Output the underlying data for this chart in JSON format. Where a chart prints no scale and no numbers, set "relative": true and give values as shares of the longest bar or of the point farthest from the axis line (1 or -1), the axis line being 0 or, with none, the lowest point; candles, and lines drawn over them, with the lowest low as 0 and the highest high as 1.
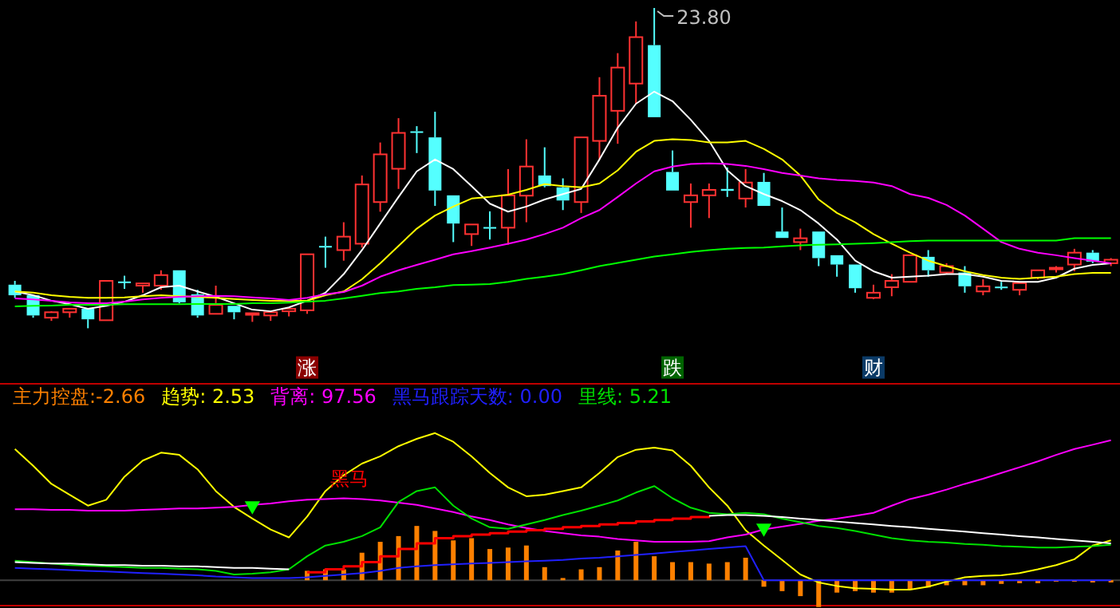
{
  "chart_data": [
    {
      "type": "candlestick",
      "relative": true,
      "categories": [
        null,
        null,
        null,
        null,
        null,
        null,
        null,
        null,
        null,
        null,
        null,
        null,
        null,
        null,
        null,
        null,
        "涨",
        null,
        null,
        null,
        null,
        null,
        null,
        null,
        null,
        null,
        null,
        null,
        null,
        null,
        null,
        null,
        null,
        null,
        null,
        null,
        "跌",
        null,
        null,
        null,
        null,
        null,
        null,
        null,
        null,
        null,
        null,
        "财",
        null,
        null,
        null,
        null,
        null,
        null,
        null,
        null,
        null,
        null,
        null,
        null,
        null
      ],
      "ohlc": [
        [
          0.136,
          0.148,
          0.095,
          0.103
        ],
        [
          0.103,
          0.103,
          0.033,
          0.04
        ],
        [
          0.033,
          0.053,
          0.023,
          0.05
        ],
        [
          0.05,
          0.061,
          0.033,
          0.061
        ],
        [
          0.061,
          0.061,
          0,
          0.028
        ],
        [
          0.025,
          0.148,
          0.025,
          0.148
        ],
        [
          0.146,
          0.164,
          0.123,
          0.143
        ],
        [
          0.133,
          0.14,
          0.111,
          0.14
        ],
        [
          0.133,
          0.181,
          0.12,
          0.166
        ],
        [
          0.181,
          0.181,
          0.078,
          0.081
        ],
        [
          0.106,
          0.12,
          0.033,
          0.04
        ],
        [
          0.045,
          0.133,
          0.045,
          0.073
        ],
        [
          0.07,
          0.07,
          0.028,
          0.05
        ],
        [
          0.043,
          0.047,
          0.02,
          0.047
        ],
        [
          0.04,
          0.05,
          0.023,
          0.05
        ],
        [
          0.053,
          0.065,
          0.037,
          0.061
        ],
        [
          0.056,
          0.231,
          0.045,
          0.231
        ],
        [
          0.257,
          0.286,
          0.189,
          0.254
        ],
        [
          0.244,
          0.331,
          0.211,
          0.286
        ],
        [
          0.264,
          0.477,
          0.252,
          0.449
        ],
        [
          0.394,
          0.58,
          0.364,
          0.543
        ],
        [
          0.498,
          0.656,
          0.435,
          0.61
        ],
        [
          0.615,
          0.631,
          0.547,
          0.611
        ],
        [
          0.596,
          0.676,
          0.382,
          0.43
        ],
        [
          0.415,
          0.415,
          0.269,
          0.327
        ],
        [
          0.294,
          0.324,
          0.257,
          0.324
        ],
        [
          0.316,
          0.365,
          0.277,
          0.312
        ],
        [
          0.314,
          0.497,
          0.261,
          0.415
        ],
        [
          0.414,
          0.59,
          0.331,
          0.505
        ],
        [
          0.477,
          0.565,
          0.44,
          0.444
        ],
        [
          0.44,
          0.468,
          0.369,
          0.399
        ],
        [
          0.394,
          0.596,
          0.36,
          0.596
        ],
        [
          0.585,
          0.784,
          0.527,
          0.726
        ],
        [
          0.679,
          0.859,
          0.576,
          0.814
        ],
        [
          0.764,
          0.958,
          0.701,
          0.909
        ],
        [
          0.884,
          1,
          0.659,
          0.659
        ],
        [
          0.488,
          0.555,
          0.43,
          0.43
        ],
        [
          0.394,
          0.452,
          0.314,
          0.415
        ],
        [
          0.415,
          0.452,
          0.344,
          0.432
        ],
        [
          0.435,
          0.502,
          0.41,
          0.429
        ],
        [
          0.405,
          0.497,
          0.377,
          0.455
        ],
        [
          0.457,
          0.485,
          0.382,
          0.382
        ],
        [
          0.302,
          0.377,
          0.282,
          0.282
        ],
        [
          0.269,
          0.311,
          0.244,
          0.281
        ],
        [
          0.302,
          0.302,
          0.194,
          0.219
        ],
        [
          0.228,
          0.228,
          0.161,
          0.199
        ],
        [
          0.199,
          0.199,
          0.111,
          0.125
        ],
        [
          0.095,
          0.136,
          0.091,
          0.111
        ],
        [
          0.128,
          0.169,
          0.1,
          0.148
        ],
        [
          0.145,
          0.228,
          0.145,
          0.228
        ],
        [
          0.223,
          0.244,
          0.161,
          0.181
        ],
        [
          0.174,
          0.203,
          0.169,
          0.194
        ],
        [
          0.174,
          0.194,
          0.111,
          0.131
        ],
        [
          0.115,
          0.153,
          0.103,
          0.131
        ],
        [
          0.13,
          0.145,
          0.12,
          0.126
        ],
        [
          0.12,
          0.141,
          0.103,
          0.141
        ],
        [
          0.158,
          0.181,
          0.153,
          0.181
        ],
        [
          0.184,
          0.194,
          0.174,
          0.189
        ],
        [
          0.199,
          0.248,
          0.178,
          0.236
        ],
        [
          0.236,
          0.244,
          0.203,
          0.208
        ],
        [
          0.203,
          0.219,
          0.194,
          0.214
        ]
      ],
      "series": [
        {
          "type": "line",
          "color": "#ffffff",
          "values": [
            0.115,
            0.103,
            0.086,
            0.075,
            0.061,
            0.07,
            0.083,
            0.103,
            0.128,
            0.133,
            0.115,
            0.098,
            0.078,
            0.058,
            0.053,
            0.065,
            0.086,
            0.111,
            0.169,
            0.244,
            0.327,
            0.41,
            0.49,
            0.527,
            0.497,
            0.444,
            0.389,
            0.364,
            0.38,
            0.402,
            0.419,
            0.435,
            0.527,
            0.626,
            0.701,
            0.739,
            0.709,
            0.651,
            0.585,
            0.493,
            0.444,
            0.419,
            0.397,
            0.369,
            0.327,
            0.277,
            0.211,
            0.178,
            0.158,
            0.161,
            0.164,
            0.169,
            0.169,
            0.161,
            0.148,
            0.145,
            0.145,
            0.158,
            0.186,
            0.198,
            0.203
          ]
        },
        {
          "type": "line",
          "color": "#ffff00",
          "values": [
            0.115,
            0.111,
            0.103,
            0.098,
            0.095,
            0.095,
            0.096,
            0.1,
            0.103,
            0.1,
            0.098,
            0.095,
            0.091,
            0.088,
            0.086,
            0.086,
            0.086,
            0.103,
            0.115,
            0.153,
            0.203,
            0.257,
            0.311,
            0.352,
            0.38,
            0.405,
            0.41,
            0.417,
            0.432,
            0.45,
            0.444,
            0.44,
            0.452,
            0.493,
            0.551,
            0.585,
            0.59,
            0.588,
            0.58,
            0.58,
            0.585,
            0.56,
            0.527,
            0.477,
            0.402,
            0.36,
            0.331,
            0.294,
            0.264,
            0.236,
            0.211,
            0.194,
            0.178,
            0.166,
            0.158,
            0.154,
            0.158,
            0.161,
            0.169,
            0.173,
            0.173
          ]
        },
        {
          "type": "line",
          "color": "#ff00ff",
          "values": [
            0.093,
            0.09,
            0.086,
            0.081,
            0.078,
            0.078,
            0.083,
            0.09,
            0.095,
            0.098,
            0.1,
            0.101,
            0.1,
            0.096,
            0.093,
            0.088,
            0.095,
            0.106,
            0.113,
            0.133,
            0.161,
            0.181,
            0.198,
            0.214,
            0.231,
            0.241,
            0.252,
            0.264,
            0.277,
            0.294,
            0.314,
            0.344,
            0.369,
            0.41,
            0.452,
            0.49,
            0.505,
            0.513,
            0.515,
            0.513,
            0.507,
            0.497,
            0.485,
            0.477,
            0.468,
            0.463,
            0.46,
            0.455,
            0.444,
            0.419,
            0.407,
            0.385,
            0.352,
            0.311,
            0.269,
            0.248,
            0.236,
            0.228,
            0.219,
            0.211,
            0.203
          ]
        },
        {
          "type": "line",
          "color": "#00ff00",
          "values": [
            0.068,
            0.07,
            0.071,
            0.073,
            0.073,
            0.073,
            0.075,
            0.075,
            0.075,
            0.075,
            0.076,
            0.076,
            0.076,
            0.078,
            0.078,
            0.08,
            0.083,
            0.086,
            0.093,
            0.101,
            0.11,
            0.115,
            0.123,
            0.128,
            0.135,
            0.136,
            0.138,
            0.145,
            0.154,
            0.161,
            0.169,
            0.181,
            0.194,
            0.204,
            0.214,
            0.224,
            0.231,
            0.238,
            0.244,
            0.248,
            0.251,
            0.252,
            0.256,
            0.259,
            0.261,
            0.262,
            0.264,
            0.266,
            0.269,
            0.272,
            0.274,
            0.274,
            0.274,
            0.274,
            0.274,
            0.274,
            0.274,
            0.274,
            0.281,
            0.281,
            0.281
          ]
        }
      ],
      "annotations": [
        "23.80"
      ]
    },
    {
      "type": "line",
      "relative": true,
      "legend": "top left",
      "categories": [
        null,
        null,
        null,
        null,
        null,
        null,
        null,
        null,
        null,
        null,
        null,
        null,
        null,
        null,
        null,
        null,
        null,
        null,
        null,
        null,
        null,
        null,
        null,
        null,
        null,
        null,
        null,
        null,
        null,
        null,
        null,
        null,
        null,
        null,
        null,
        null,
        null,
        null,
        null,
        null,
        null,
        null,
        null,
        null,
        null,
        null,
        null,
        null,
        null,
        null,
        null,
        null,
        null,
        null,
        null,
        null,
        null,
        null,
        null,
        null,
        null
      ],
      "series": [
        {
          "type": "bar",
          "name": "主力控盘:-2.66",
          "color": "#ff8000",
          "values": [
            null,
            null,
            null,
            null,
            null,
            null,
            null,
            null,
            null,
            null,
            null,
            null,
            null,
            null,
            null,
            null,
            0.064,
            0.074,
            0.074,
            0.187,
            0.261,
            0.3,
            0.369,
            0.335,
            0.271,
            0.286,
            0.212,
            0.222,
            0.236,
            0.089,
            0.015,
            0.074,
            0.089,
            0.202,
            0.261,
            0.163,
            0.123,
            0.123,
            0.113,
            0.123,
            0.153,
            -0.044,
            -0.074,
            -0.108,
            -0.182,
            -0.084,
            -0.074,
            -0.084,
            -0.084,
            -0.059,
            -0.049,
            -0.034,
            -0.034,
            -0.034,
            -0.025,
            -0.02,
            -0.02,
            -0.01,
            -0.01,
            -0.015,
            -0.015
          ]
        },
        {
          "type": "line",
          "name": "趋势: 2.53",
          "color": "#ffff00",
          "values": [
            0.892,
            0.778,
            0.655,
            0.581,
            0.507,
            0.547,
            0.704,
            0.813,
            0.867,
            0.852,
            0.754,
            0.606,
            0.498,
            0.419,
            0.345,
            0.291,
            0.433,
            0.606,
            0.714,
            0.793,
            0.842,
            0.911,
            0.961,
            1,
            0.941,
            0.842,
            0.729,
            0.631,
            0.571,
            0.581,
            0.606,
            0.631,
            0.729,
            0.837,
            0.887,
            0.901,
            0.882,
            0.778,
            0.631,
            0.507,
            0.34,
            0.236,
            0.138,
            0.039,
            -0.015,
            -0.039,
            -0.054,
            -0.059,
            -0.064,
            -0.064,
            -0.044,
            -0.01,
            0.02,
            0.03,
            0.034,
            0.049,
            0.074,
            0.103,
            0.143,
            0.236,
            0.271
          ]
        },
        {
          "type": "line",
          "name": "背离: 97.56",
          "color": "#ff00ff",
          "values": [
            0.483,
            0.483,
            0.478,
            0.478,
            0.473,
            0.473,
            0.473,
            0.478,
            0.483,
            0.488,
            0.488,
            0.493,
            0.498,
            0.512,
            0.522,
            0.537,
            0.547,
            0.552,
            0.557,
            0.552,
            0.542,
            0.527,
            0.512,
            0.488,
            0.463,
            0.433,
            0.409,
            0.379,
            0.355,
            0.335,
            0.32,
            0.305,
            0.296,
            0.281,
            0.271,
            0.261,
            0.261,
            0.261,
            0.266,
            0.291,
            0.31,
            0.345,
            0.365,
            0.384,
            0.404,
            0.419,
            0.438,
            0.458,
            0.507,
            0.552,
            0.581,
            0.616,
            0.655,
            0.69,
            0.729,
            0.768,
            0.808,
            0.852,
            0.892,
            0.921,
            0.951
          ]
        },
        {
          "type": "line",
          "name": "黑马跟踪天数: 0.00",
          "color": "#2020ff",
          "values": [
            0.084,
            0.079,
            0.074,
            0.069,
            0.064,
            0.059,
            0.054,
            0.049,
            0.044,
            0.039,
            0.034,
            0.025,
            0.02,
            0.015,
            0.015,
            0.015,
            0.02,
            0.03,
            0.039,
            0.049,
            0.064,
            0.084,
            0.094,
            0.103,
            0.108,
            0.113,
            0.118,
            0.123,
            0.128,
            0.133,
            0.138,
            0.148,
            0.153,
            0.163,
            0.172,
            0.182,
            0.192,
            0.202,
            0.212,
            0.222,
            0.232,
            0,
            0,
            0,
            0,
            0,
            0,
            0,
            0,
            0,
            0,
            0,
            0,
            0,
            0,
            0,
            0,
            0,
            0,
            0,
            0
          ]
        },
        {
          "type": "line",
          "name": "里线: 5.21",
          "color": "#00e000",
          "values": [
            0.133,
            0.123,
            0.113,
            0.103,
            0.099,
            0.094,
            0.089,
            0.084,
            0.084,
            0.079,
            0.074,
            0.064,
            0.039,
            0.044,
            0.054,
            0.074,
            0.163,
            0.236,
            0.261,
            0.3,
            0.36,
            0.532,
            0.606,
            0.631,
            0.507,
            0.419,
            0.36,
            0.35,
            0.379,
            0.409,
            0.443,
            0.473,
            0.507,
            0.542,
            0.596,
            0.64,
            0.557,
            0.493,
            0.458,
            0.448,
            0.458,
            0.448,
            0.419,
            0.394,
            0.369,
            0.355,
            0.335,
            0.31,
            0.286,
            0.271,
            0.261,
            0.256,
            0.246,
            0.241,
            0.232,
            0.227,
            0.222,
            0.222,
            0.227,
            0.232,
            0.241
          ]
        },
        {
          "type": "step",
          "color": "#ff0000",
          "values": [
            null,
            null,
            null,
            null,
            null,
            null,
            null,
            null,
            null,
            null,
            null,
            null,
            null,
            null,
            null,
            null,
            0.054,
            0.074,
            0.094,
            0.123,
            0.163,
            0.212,
            0.251,
            0.286,
            0.3,
            0.31,
            0.32,
            0.33,
            0.34,
            0.35,
            0.36,
            0.369,
            0.379,
            0.389,
            0.399,
            0.409,
            0.419,
            0.429,
            0.438,
            null,
            null,
            null,
            null,
            null,
            null,
            null,
            null,
            null,
            null,
            null,
            null,
            null,
            null,
            null,
            null,
            null,
            null,
            null,
            null,
            null,
            null
          ]
        },
        {
          "type": "line",
          "color": "#ffffff",
          "values": [
            0.123,
            0.118,
            0.113,
            0.113,
            0.108,
            0.103,
            0.103,
            0.099,
            0.099,
            0.094,
            0.094,
            0.089,
            0.084,
            0.084,
            0.079,
            0.074,
            null,
            null,
            null,
            null,
            null,
            null,
            null,
            null,
            null,
            null,
            null,
            null,
            null,
            null,
            null,
            null,
            null,
            null,
            null,
            null,
            null,
            null,
            0.438,
            0.443,
            0.443,
            0.438,
            0.429,
            0.419,
            0.409,
            0.399,
            0.389,
            0.379,
            0.369,
            0.36,
            0.35,
            0.34,
            0.33,
            0.32,
            0.31,
            0.3,
            0.291,
            0.281,
            0.271,
            0.261,
            0.251
          ]
        },
        {
          "type": "scatter",
          "marker": "triangle",
          "color": "#00ff00",
          "values": [
            null,
            null,
            null,
            null,
            null,
            null,
            null,
            null,
            null,
            null,
            null,
            null,
            null,
            0.507,
            null,
            null,
            null,
            null,
            null,
            null,
            null,
            null,
            null,
            null,
            null,
            null,
            null,
            null,
            null,
            null,
            null,
            null,
            null,
            null,
            null,
            null,
            null,
            null,
            null,
            null,
            null,
            0.355,
            null,
            null,
            null,
            null,
            null,
            null,
            null,
            null,
            null,
            null,
            null,
            null,
            null,
            null,
            null,
            null,
            null,
            null,
            null
          ]
        }
      ],
      "annotations": [
        "黑马"
      ]
    }
  ]
}
